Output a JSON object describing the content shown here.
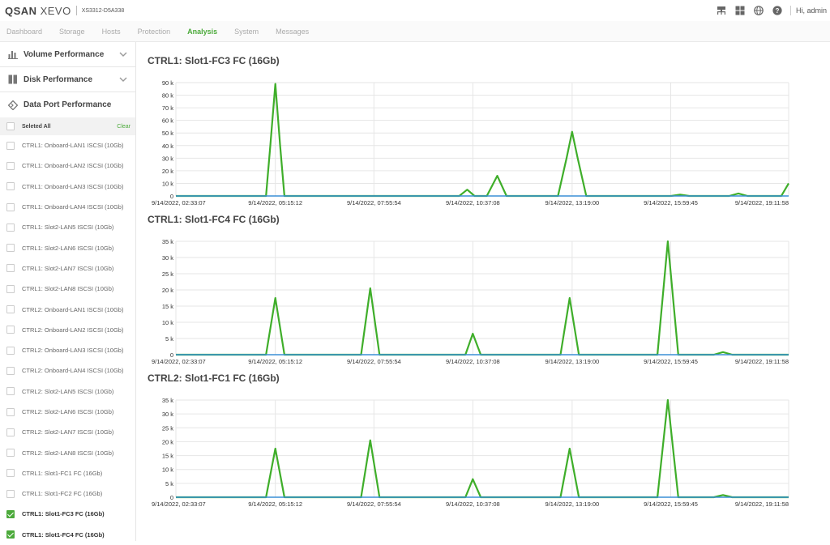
{
  "header": {
    "logo_brand": "QSAN",
    "logo_product": "XEVO",
    "model": "XS3312-D5A338",
    "user_greeting": "Hi, admin",
    "icons": [
      "network-icon",
      "grid-icon",
      "globe-icon",
      "help-icon"
    ]
  },
  "nav": {
    "items": [
      {
        "label": "Dashboard"
      },
      {
        "label": "Storage"
      },
      {
        "label": "Hosts"
      },
      {
        "label": "Protection"
      },
      {
        "label": "Analysis"
      },
      {
        "label": "System"
      },
      {
        "label": "Messages"
      }
    ],
    "active": "Analysis"
  },
  "sidebar": {
    "sections": [
      {
        "label": "Volume Performance",
        "icon": "bar-chart-icon"
      },
      {
        "label": "Disk Performance",
        "icon": "disk-icon"
      },
      {
        "label": "Data Port Performance",
        "icon": "data-port-icon"
      }
    ],
    "select_all_label": "Seleted All",
    "clear_label": "Clear",
    "ports": [
      {
        "label": "CTRL1: Onboard-LAN1 ISCSI (10Gb)",
        "checked": false
      },
      {
        "label": "CTRL1: Onboard-LAN2 ISCSI (10Gb)",
        "checked": false
      },
      {
        "label": "CTRL1: Onboard-LAN3 ISCSI (10Gb)",
        "checked": false
      },
      {
        "label": "CTRL1: Onboard-LAN4 ISCSI (10Gb)",
        "checked": false
      },
      {
        "label": "CTRL1: Slot2-LAN5 ISCSI (10Gb)",
        "checked": false
      },
      {
        "label": "CTRL1: Slot2-LAN6 ISCSI (10Gb)",
        "checked": false
      },
      {
        "label": "CTRL1: Slot2-LAN7 ISCSI (10Gb)",
        "checked": false
      },
      {
        "label": "CTRL1: Slot2-LAN8 ISCSI (10Gb)",
        "checked": false
      },
      {
        "label": "CTRL2: Onboard-LAN1 ISCSI (10Gb)",
        "checked": false
      },
      {
        "label": "CTRL2: Onboard-LAN2 ISCSI (10Gb)",
        "checked": false
      },
      {
        "label": "CTRL2: Onboard-LAN3 ISCSI (10Gb)",
        "checked": false
      },
      {
        "label": "CTRL2: Onboard-LAN4 ISCSI (10Gb)",
        "checked": false
      },
      {
        "label": "CTRL2: Slot2-LAN5 ISCSI (10Gb)",
        "checked": false
      },
      {
        "label": "CTRL2: Slot2-LAN6 ISCSI (10Gb)",
        "checked": false
      },
      {
        "label": "CTRL2: Slot2-LAN7 ISCSI (10Gb)",
        "checked": false
      },
      {
        "label": "CTRL2: Slot2-LAN8 ISCSI (10Gb)",
        "checked": false
      },
      {
        "label": "CTRL1: Slot1-FC1 FC (16Gb)",
        "checked": false
      },
      {
        "label": "CTRL1: Slot1-FC2 FC (16Gb)",
        "checked": false
      },
      {
        "label": "CTRL1: Slot1-FC3 FC (16Gb)",
        "checked": true
      },
      {
        "label": "CTRL1: Slot1-FC4 FC (16Gb)",
        "checked": true
      }
    ]
  },
  "colors": {
    "accent": "#4caa3b",
    "line_green": "#3fae2a",
    "line_blue": "#3a8fd6",
    "grid": "#e6e6e6"
  },
  "chart_data": [
    {
      "type": "line",
      "title": "CTRL1: Slot1-FC3 FC (16Gb)",
      "xlabels": [
        "9/14/2022, 02:33:07",
        "9/14/2022, 05:15:12",
        "9/14/2022, 07:55:54",
        "9/14/2022, 10:37:08",
        "9/14/2022, 13:19:00",
        "9/14/2022, 15:59:45",
        "9/14/2022, 19:11:58"
      ],
      "yticks": [
        "0",
        "10 k",
        "20 k",
        "30 k",
        "40 k",
        "50 k",
        "60 k",
        "70 k",
        "80 k",
        "90 k"
      ],
      "ylim": [
        0,
        90000
      ],
      "x": [
        "9/14/2022, 02:33:07",
        "9/14/2022, 05:00:00",
        "9/14/2022, 05:07:00",
        "9/14/2022, 05:15:12",
        "9/14/2022, 05:23:00",
        "9/14/2022, 05:30:00",
        "9/14/2022, 10:15:00",
        "9/14/2022, 10:28:00",
        "9/14/2022, 10:40:00",
        "9/14/2022, 11:00:00",
        "9/14/2022, 11:17:00",
        "9/14/2022, 11:32:00",
        "9/14/2022, 12:56:00",
        "9/14/2022, 13:10:00",
        "9/14/2022, 13:19:00",
        "9/14/2022, 13:28:00",
        "9/14/2022, 13:42:00",
        "9/14/2022, 16:00:00",
        "9/14/2022, 16:15:00",
        "9/14/2022, 16:30:00",
        "9/14/2022, 17:35:00",
        "9/14/2022, 17:50:00",
        "9/14/2022, 18:05:00",
        "9/14/2022, 19:00:00",
        "9/14/2022, 19:11:58"
      ],
      "series": [
        {
          "color": "#3fae2a",
          "values": [
            0,
            0,
            40000,
            89000,
            40000,
            0,
            0,
            5000,
            0,
            0,
            16000,
            0,
            0,
            30000,
            51000,
            30000,
            0,
            0,
            1000,
            0,
            0,
            2000,
            0,
            0,
            10000
          ]
        },
        {
          "color": "#3a8fd6",
          "values": [
            0,
            0,
            0,
            0,
            0,
            0,
            0,
            0,
            0,
            0,
            0,
            0,
            0,
            0,
            0,
            0,
            0,
            0,
            0,
            0,
            0,
            0,
            0,
            0,
            0
          ]
        }
      ]
    },
    {
      "type": "line",
      "title": "CTRL1: Slot1-FC4 FC (16Gb)",
      "xlabels": [
        "9/14/2022, 02:33:07",
        "9/14/2022, 05:15:12",
        "9/14/2022, 07:55:54",
        "9/14/2022, 10:37:08",
        "9/14/2022, 13:19:00",
        "9/14/2022, 15:59:45",
        "9/14/2022, 19:11:58"
      ],
      "yticks": [
        "0",
        "5 k",
        "10 k",
        "15 k",
        "20 k",
        "25 k",
        "30 k",
        "35 k"
      ],
      "ylim": [
        0,
        35000
      ],
      "x": [
        "9/14/2022, 02:33:07",
        "9/14/2022, 05:00:00",
        "9/14/2022, 05:15:12",
        "9/14/2022, 05:30:00",
        "9/14/2022, 07:35:00",
        "9/14/2022, 07:50:00",
        "9/14/2022, 08:05:00",
        "9/14/2022, 10:25:00",
        "9/14/2022, 10:37:08",
        "9/14/2022, 10:50:00",
        "9/14/2022, 13:00:00",
        "9/14/2022, 13:15:00",
        "9/14/2022, 13:30:00",
        "9/14/2022, 15:38:00",
        "9/14/2022, 15:55:00",
        "9/14/2022, 16:12:00",
        "9/14/2022, 17:10:00",
        "9/14/2022, 17:25:00",
        "9/14/2022, 17:40:00",
        "9/14/2022, 19:11:58"
      ],
      "series": [
        {
          "color": "#3fae2a",
          "values": [
            0,
            0,
            17500,
            0,
            0,
            20500,
            0,
            0,
            6500,
            0,
            0,
            17500,
            0,
            0,
            35000,
            0,
            0,
            800,
            0,
            0
          ]
        },
        {
          "color": "#3a8fd6",
          "values": [
            0,
            0,
            0,
            0,
            0,
            0,
            0,
            0,
            0,
            0,
            0,
            0,
            0,
            0,
            0,
            0,
            0,
            0,
            0,
            0
          ]
        }
      ]
    },
    {
      "type": "line",
      "title": "CTRL2: Slot1-FC1 FC (16Gb)",
      "xlabels": [
        "9/14/2022, 02:33:07",
        "9/14/2022, 05:15:12",
        "9/14/2022, 07:55:54",
        "9/14/2022, 10:37:08",
        "9/14/2022, 13:19:00",
        "9/14/2022, 15:59:45",
        "9/14/2022, 19:11:58"
      ],
      "yticks": [
        "0",
        "5 k",
        "10 k",
        "15 k",
        "20 k",
        "25 k",
        "30 k",
        "35 k"
      ],
      "ylim": [
        0,
        35000
      ],
      "x": [
        "9/14/2022, 02:33:07",
        "9/14/2022, 05:00:00",
        "9/14/2022, 05:15:12",
        "9/14/2022, 05:30:00",
        "9/14/2022, 07:35:00",
        "9/14/2022, 07:50:00",
        "9/14/2022, 08:05:00",
        "9/14/2022, 10:25:00",
        "9/14/2022, 10:37:08",
        "9/14/2022, 10:50:00",
        "9/14/2022, 13:00:00",
        "9/14/2022, 13:15:00",
        "9/14/2022, 13:30:00",
        "9/14/2022, 15:38:00",
        "9/14/2022, 15:55:00",
        "9/14/2022, 16:12:00",
        "9/14/2022, 17:10:00",
        "9/14/2022, 17:25:00",
        "9/14/2022, 17:40:00",
        "9/14/2022, 19:11:58"
      ],
      "series": [
        {
          "color": "#3fae2a",
          "values": [
            0,
            0,
            17500,
            0,
            0,
            20500,
            0,
            0,
            6500,
            0,
            0,
            17500,
            0,
            0,
            35000,
            0,
            0,
            800,
            0,
            0
          ]
        },
        {
          "color": "#3a8fd6",
          "values": [
            0,
            0,
            0,
            0,
            0,
            0,
            0,
            0,
            0,
            0,
            0,
            0,
            0,
            0,
            0,
            0,
            0,
            0,
            0,
            0
          ]
        }
      ]
    }
  ]
}
